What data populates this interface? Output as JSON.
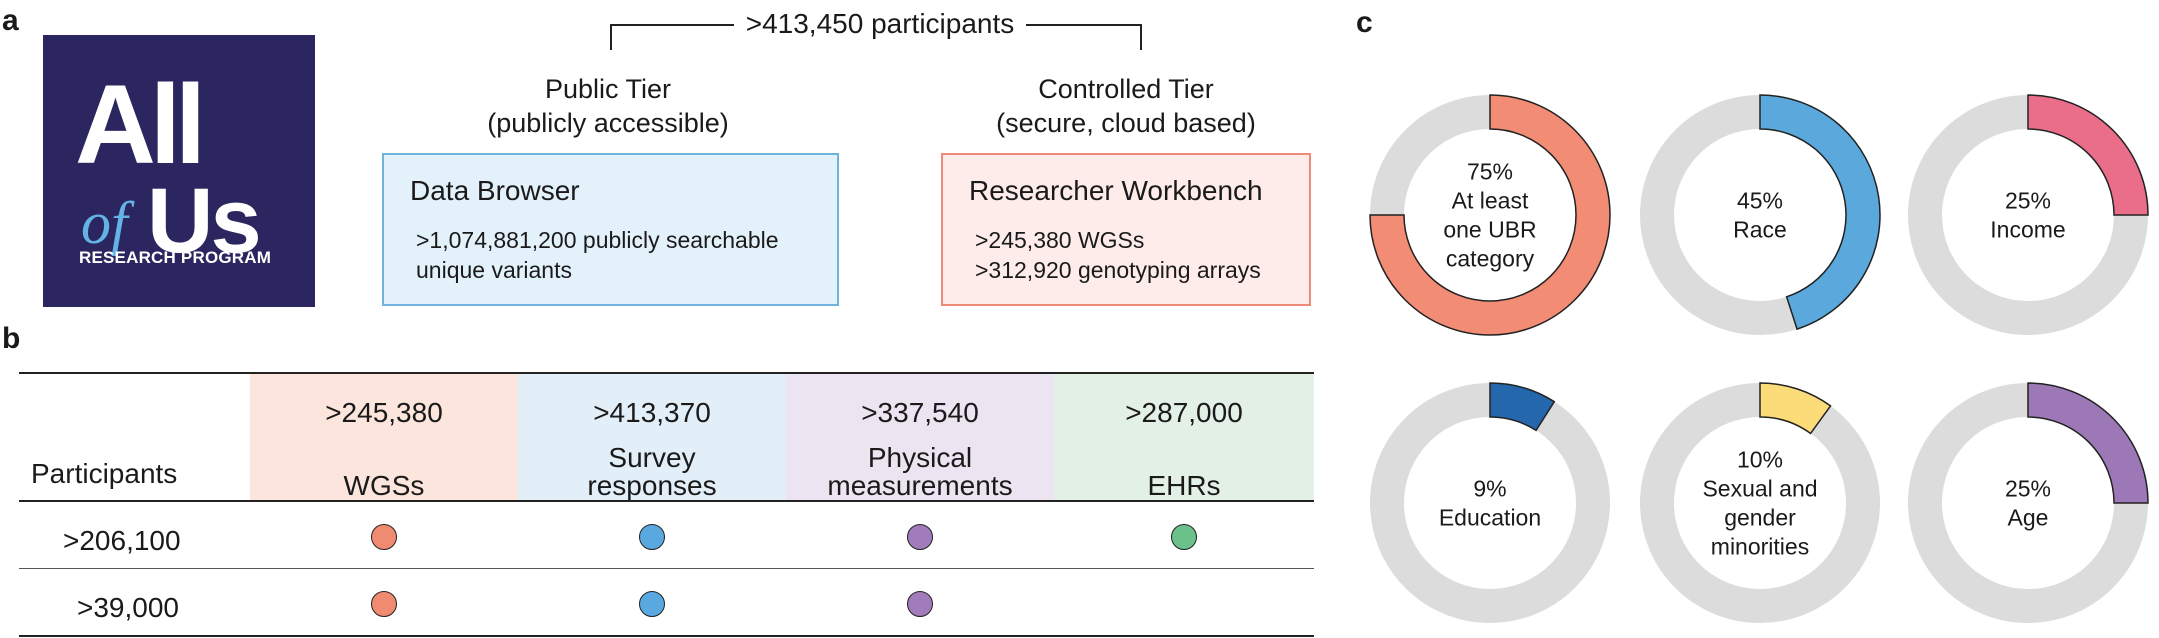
{
  "panels": {
    "a": "a",
    "b": "b",
    "c": "c"
  },
  "logo": {
    "all": "All",
    "of": "of",
    "us": "Us",
    "subtitle": "RESEARCH PROGRAM"
  },
  "bracket": {
    "label": ">413,450 participants"
  },
  "public_tier": {
    "heading_1": "Public Tier",
    "heading_2": "(publicly accessible)",
    "box_title": "Data Browser",
    "line_1": ">1,074,881,200 publicly searchable",
    "line_2": "unique variants",
    "fill": "#e3f1fa",
    "stroke": "#6fb2de"
  },
  "controlled_tier": {
    "heading_1": "Controlled Tier",
    "heading_2": "(secure, cloud based)",
    "box_title": "Researcher Workbench",
    "line_1": ">245,380 WGSs",
    "line_2": ">312,920 genotyping arrays",
    "fill": "#fdecea",
    "stroke": "#ef8a78"
  },
  "table": {
    "row_header": "Participants",
    "columns": [
      {
        "count": ">245,380",
        "label_1": "",
        "label_2": "WGSs",
        "bg": "#fbe5dd",
        "dot": "#f08a70"
      },
      {
        "count": ">413,370",
        "label_1": "Survey",
        "label_2": "responses",
        "bg": "#e2eff8",
        "dot": "#5aa8e0"
      },
      {
        "count": ">337,540",
        "label_1": "Physical",
        "label_2": "measurements",
        "bg": "#ece4f0",
        "dot": "#a17cbb"
      },
      {
        "count": ">287,000",
        "label_1": "",
        "label_2": "EHRs",
        "bg": "#e3f0e6",
        "dot": "#6cc08a"
      }
    ],
    "rows": [
      {
        "label": ">206,100",
        "has": [
          true,
          true,
          true,
          true
        ]
      },
      {
        "label": ">39,000",
        "has": [
          true,
          true,
          true,
          false
        ]
      }
    ]
  },
  "donuts": [
    {
      "percent": 75,
      "pct_label": "75%",
      "line_1": "At least",
      "line_2": "one UBR",
      "line_3": "category",
      "color": "#f38c74"
    },
    {
      "percent": 45,
      "pct_label": "45%",
      "line_1": "Race",
      "line_2": "",
      "line_3": "",
      "color": "#5aa8dc"
    },
    {
      "percent": 25,
      "pct_label": "25%",
      "line_1": "Income",
      "line_2": "",
      "line_3": "",
      "color": "#ea6e8a"
    },
    {
      "percent": 9,
      "pct_label": "9%",
      "line_1": "Education",
      "line_2": "",
      "line_3": "",
      "color": "#2467ac"
    },
    {
      "percent": 10,
      "pct_label": "10%",
      "line_1": "Sexual and",
      "line_2": "gender",
      "line_3": "minorities",
      "color": "#fcdc78"
    },
    {
      "percent": 25,
      "pct_label": "25%",
      "line_1": "Age",
      "line_2": "",
      "line_3": "",
      "color": "#9c79b6"
    }
  ],
  "donut_track_color": "#dcdcdc"
}
